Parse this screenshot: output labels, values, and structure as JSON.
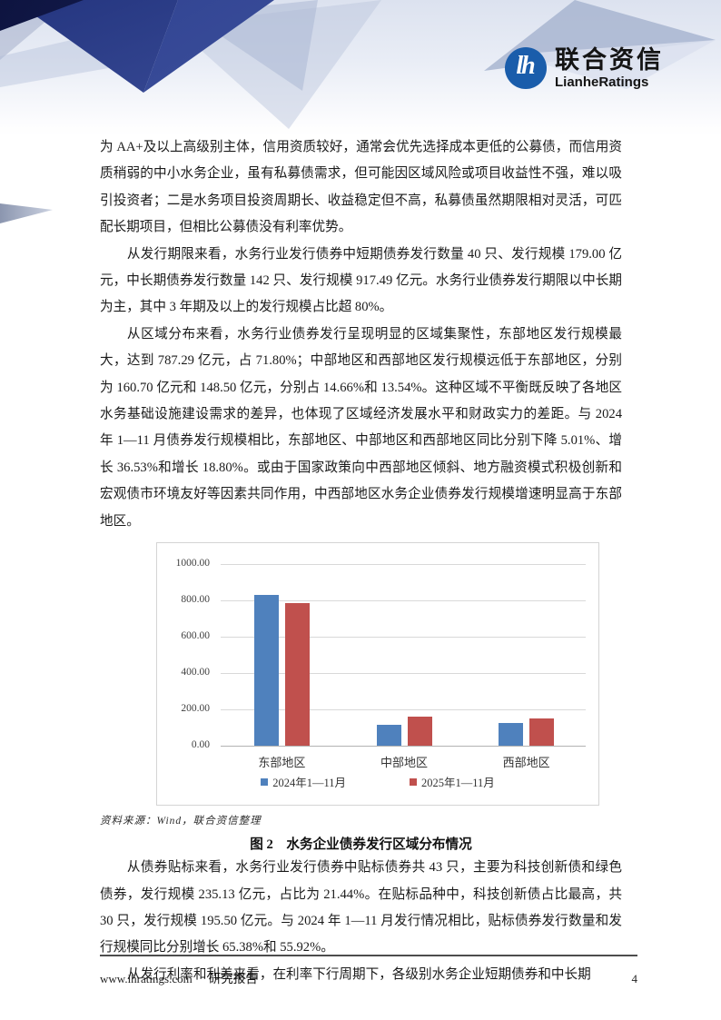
{
  "header": {
    "logo": {
      "monogram": "lh",
      "name_cn": "联合资信",
      "name_en": "LianheRatings"
    }
  },
  "paragraphs": [
    "为 AA+及以上高级别主体，信用资质较好，通常会优先选择成本更低的公募债，而信用资质稍弱的中小水务企业，虽有私募债需求，但可能因区域风险或项目收益性不强，难以吸引投资者；二是水务项目投资周期长、收益稳定但不高，私募债虽然期限相对灵活，可匹配长期项目，但相比公募债没有利率优势。",
    "从发行期限来看，水务行业发行债券中短期债券发行数量 40 只、发行规模 179.00 亿元，中长期债券发行数量 142 只、发行规模 917.49 亿元。水务行业债券发行期限以中长期为主，其中 3 年期及以上的发行规模占比超 80%。",
    "从区域分布来看，水务行业债券发行呈现明显的区域集聚性，东部地区发行规模最大，达到 787.29 亿元，占 71.80%；中部地区和西部地区发行规模远低于东部地区，分别为 160.70 亿元和 148.50 亿元，分别占 14.66%和 13.54%。这种区域不平衡既反映了各地区水务基础设施建设需求的差异，也体现了区域经济发展水平和财政实力的差距。与 2024 年 1—11 月债券发行规模相比，东部地区、中部地区和西部地区同比分别下降 5.01%、增长 36.53%和增长 18.80%。或由于国家政策向中西部地区倾斜、地方融资模式积极创新和宏观债市环境友好等因素共同作用，中西部地区水务企业债券发行规模增速明显高于东部地区。",
    "从债券贴标来看，水务行业发行债券中贴标债券共 43 只，主要为科技创新债和绿色债券，发行规模 235.13 亿元，占比为 21.44%。在贴标品种中，科技创新债占比最高，共 30 只，发行规模 195.50 亿元。与 2024 年 1—11 月发行情况相比，贴标债券发行数量和发行规模同比分别增长 65.38%和 55.92%。",
    "从发行利率和利差来看，在利率下行周期下，各级别水务企业短期债券和中长期"
  ],
  "chart_data": {
    "type": "bar",
    "title": "",
    "categories": [
      "东部地区",
      "中部地区",
      "西部地区"
    ],
    "series": [
      {
        "name": "2024年1—11月",
        "color": "#4f81bd",
        "values": [
          828.81,
          117.7,
          125.0
        ]
      },
      {
        "name": "2025年1—11月",
        "color": "#c0504d",
        "values": [
          787.29,
          160.7,
          148.5
        ]
      }
    ],
    "ylim": [
      0,
      1000
    ],
    "yticks": [
      "0.00",
      "200.00",
      "400.00",
      "600.00",
      "800.00",
      "1000.00"
    ],
    "grid": "horizontal",
    "legend_position": "bottom"
  },
  "figure": {
    "source": "资料来源：Wind，联合资信整理",
    "caption": "图 2　水务企业债券发行区域分布情况"
  },
  "footer": {
    "site": "www.lhratings.com",
    "label": "研究报告",
    "page": "4"
  }
}
